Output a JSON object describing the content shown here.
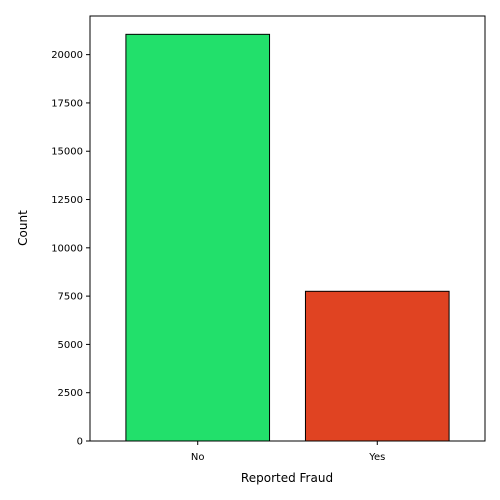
{
  "chart_data": {
    "type": "bar",
    "title": "",
    "xlabel": "Reported Fraud",
    "ylabel": "Count",
    "categories": [
      "No",
      "Yes"
    ],
    "values": [
      21051,
      7749
    ],
    "colors": [
      "#22e06b",
      "#e04322"
    ],
    "edge_color": "#000000",
    "ylim": [
      0,
      22000
    ],
    "yticks": [
      0,
      2500,
      5000,
      7500,
      10000,
      12500,
      15000,
      17500,
      20000
    ],
    "grid": false,
    "legend": "none"
  }
}
